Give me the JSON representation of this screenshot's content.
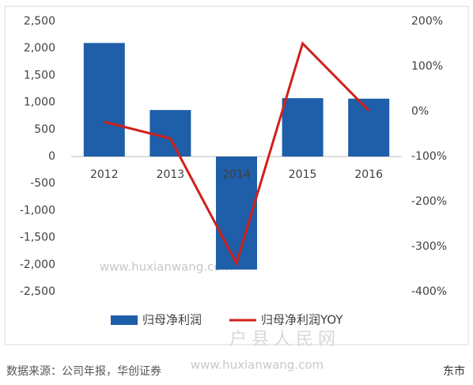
{
  "chart_data": {
    "type": "bar",
    "categories": [
      "2012",
      "2013",
      "2014",
      "2015",
      "2016"
    ],
    "series": [
      {
        "name": "归母净利润",
        "color": "#1f5ea8",
        "values": [
          2100,
          860,
          -2090,
          1080,
          1070
        ]
      },
      {
        "name": "归母净利润YOY",
        "color": "#d0201c",
        "type": "line",
        "axis": "y2",
        "values": [
          -23,
          -60,
          -337,
          151,
          2
        ]
      }
    ],
    "ylim": [
      -2500,
      2500
    ],
    "yticks": [
      {
        "value": -2500,
        "label": "-2,500"
      },
      {
        "value": -2000,
        "label": "-2,000"
      },
      {
        "value": -1500,
        "label": "-1,500"
      },
      {
        "value": -1000,
        "label": "-1,000"
      },
      -500,
      0,
      500,
      {
        "value": 1000,
        "label": "1,000"
      },
      {
        "value": 1500,
        "label": "1,500"
      },
      {
        "value": 2000,
        "label": "2,000"
      },
      {
        "value": 2500,
        "label": "2,500"
      }
    ],
    "y2lim": [
      -400,
      200
    ],
    "y2ticks": [
      {
        "value": -400,
        "label": "-400%"
      },
      {
        "value": -300,
        "label": "-300%"
      },
      {
        "value": -200,
        "label": "-200%"
      },
      {
        "value": -100,
        "label": "-100%"
      },
      {
        "value": 0,
        "label": "0%"
      },
      {
        "value": 100,
        "label": "100%"
      },
      {
        "value": 200,
        "label": "200%"
      }
    ],
    "grid": false,
    "legend": "bottom",
    "source": "数据来源：公司年报，华创证券",
    "annotations": [
      "www.huxianwang.com",
      "户县人民网",
      "www.huxianwang.com",
      "东市"
    ]
  }
}
